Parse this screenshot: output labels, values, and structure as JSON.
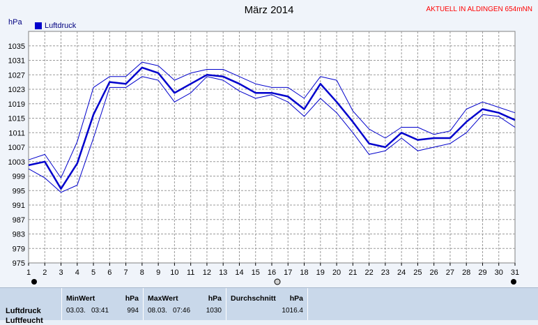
{
  "header": {
    "title": "März 2014",
    "status": "AKTUELL IN ALDINGEN 654mNN",
    "unit": "hPa",
    "legend": "Luftdruck"
  },
  "colors": {
    "mean": "#0000cc",
    "band": "#0000cc",
    "grid": "#9a9a9a",
    "background": "#ffffff"
  },
  "chart_data": {
    "type": "line",
    "title": "März 2014",
    "ylabel": "hPa",
    "xlabel": "",
    "ylim": [
      975,
      1039
    ],
    "yticks": [
      975,
      979,
      983,
      987,
      991,
      995,
      999,
      1003,
      1007,
      1011,
      1015,
      1019,
      1023,
      1027,
      1031,
      1035
    ],
    "x": [
      1,
      2,
      3,
      4,
      5,
      6,
      7,
      8,
      9,
      10,
      11,
      12,
      13,
      14,
      15,
      16,
      17,
      18,
      19,
      20,
      21,
      22,
      23,
      24,
      25,
      26,
      27,
      28,
      29,
      30,
      31
    ],
    "grid": true,
    "legend_position": "top-left",
    "series": [
      {
        "name": "Luftdruck",
        "role": "mean",
        "values": [
          1002,
          1003,
          995.5,
          1002.5,
          1016,
          1025,
          1024.5,
          1029,
          1027.5,
          1022,
          1024.5,
          1027,
          1026.5,
          1024.5,
          1022,
          1022,
          1021,
          1017.5,
          1024.5,
          1019.5,
          1014,
          1008,
          1007,
          1011,
          1009,
          1009.5,
          1009.5,
          1014,
          1017.5,
          1016.5,
          1014.5
        ]
      },
      {
        "role": "max",
        "values": [
          1003.5,
          1005,
          998.5,
          1008.5,
          1023.5,
          1026.5,
          1026.5,
          1030.5,
          1029.5,
          1025.5,
          1027.5,
          1028.5,
          1028.5,
          1026.5,
          1024.5,
          1023.5,
          1023.5,
          1020.5,
          1026.5,
          1025.5,
          1017,
          1012,
          1009.5,
          1012.5,
          1012.5,
          1010.5,
          1011.5,
          1017.5,
          1019.5,
          1018,
          1016.5
        ]
      },
      {
        "role": "min",
        "values": [
          1001,
          998.5,
          994.5,
          996.5,
          1009.5,
          1023.5,
          1023.5,
          1026.5,
          1025.5,
          1019.5,
          1022,
          1026.5,
          1025.5,
          1022.5,
          1020.5,
          1021.5,
          1019.5,
          1015.5,
          1020.5,
          1016.5,
          1011,
          1005,
          1006,
          1009.5,
          1006,
          1007,
          1008,
          1011,
          1016,
          1015.5,
          1012.5
        ]
      }
    ]
  },
  "table": {
    "row_label": "Luftdruck",
    "row_label_2": "Luftfeucht",
    "min_header": "MinWert",
    "min_unit": "hPa",
    "min_date": "03.03.",
    "min_time": "03:41",
    "min_value": "994",
    "max_header": "MaxWert",
    "max_unit": "hPa",
    "max_date": "08.03.",
    "max_time": "07:46",
    "max_value": "1030",
    "avg_header": "Durchschnitt",
    "avg_unit": "hPa",
    "avg_value": "1016.4"
  }
}
